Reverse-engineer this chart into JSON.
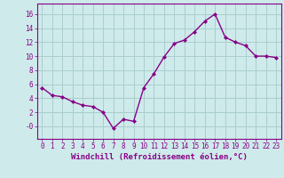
{
  "x": [
    0,
    1,
    2,
    3,
    4,
    5,
    6,
    7,
    8,
    9,
    10,
    11,
    12,
    13,
    14,
    15,
    16,
    17,
    18,
    19,
    20,
    21,
    22,
    23
  ],
  "y": [
    5.5,
    4.4,
    4.2,
    3.5,
    3.0,
    2.8,
    2.0,
    -0.3,
    1.0,
    0.7,
    5.5,
    7.5,
    9.9,
    11.8,
    12.3,
    13.5,
    15.0,
    16.0,
    12.7,
    12.0,
    11.5,
    10.0,
    10.0,
    9.8
  ],
  "line_color": "#880088",
  "marker": "D",
  "marker_size": 2,
  "linewidth": 1.0,
  "xlabel": "Windchill (Refroidissement éolien,°C)",
  "xlabel_fontsize": 6.5,
  "background_color": "#ceeaea",
  "grid_color": "#aacece",
  "yticks": [
    0,
    2,
    4,
    6,
    8,
    10,
    12,
    14,
    16
  ],
  "ytick_labels": [
    "-0",
    "2",
    "4",
    "6",
    "8",
    "10",
    "12",
    "14",
    "16"
  ],
  "ylim": [
    -1.8,
    17.5
  ],
  "xlim": [
    -0.5,
    23.5
  ],
  "xticks": [
    0,
    1,
    2,
    3,
    4,
    5,
    6,
    7,
    8,
    9,
    10,
    11,
    12,
    13,
    14,
    15,
    16,
    17,
    18,
    19,
    20,
    21,
    22,
    23
  ],
  "tick_fontsize": 5.5,
  "tick_color": "#880088",
  "label_color": "#880088",
  "spine_color": "#880088"
}
